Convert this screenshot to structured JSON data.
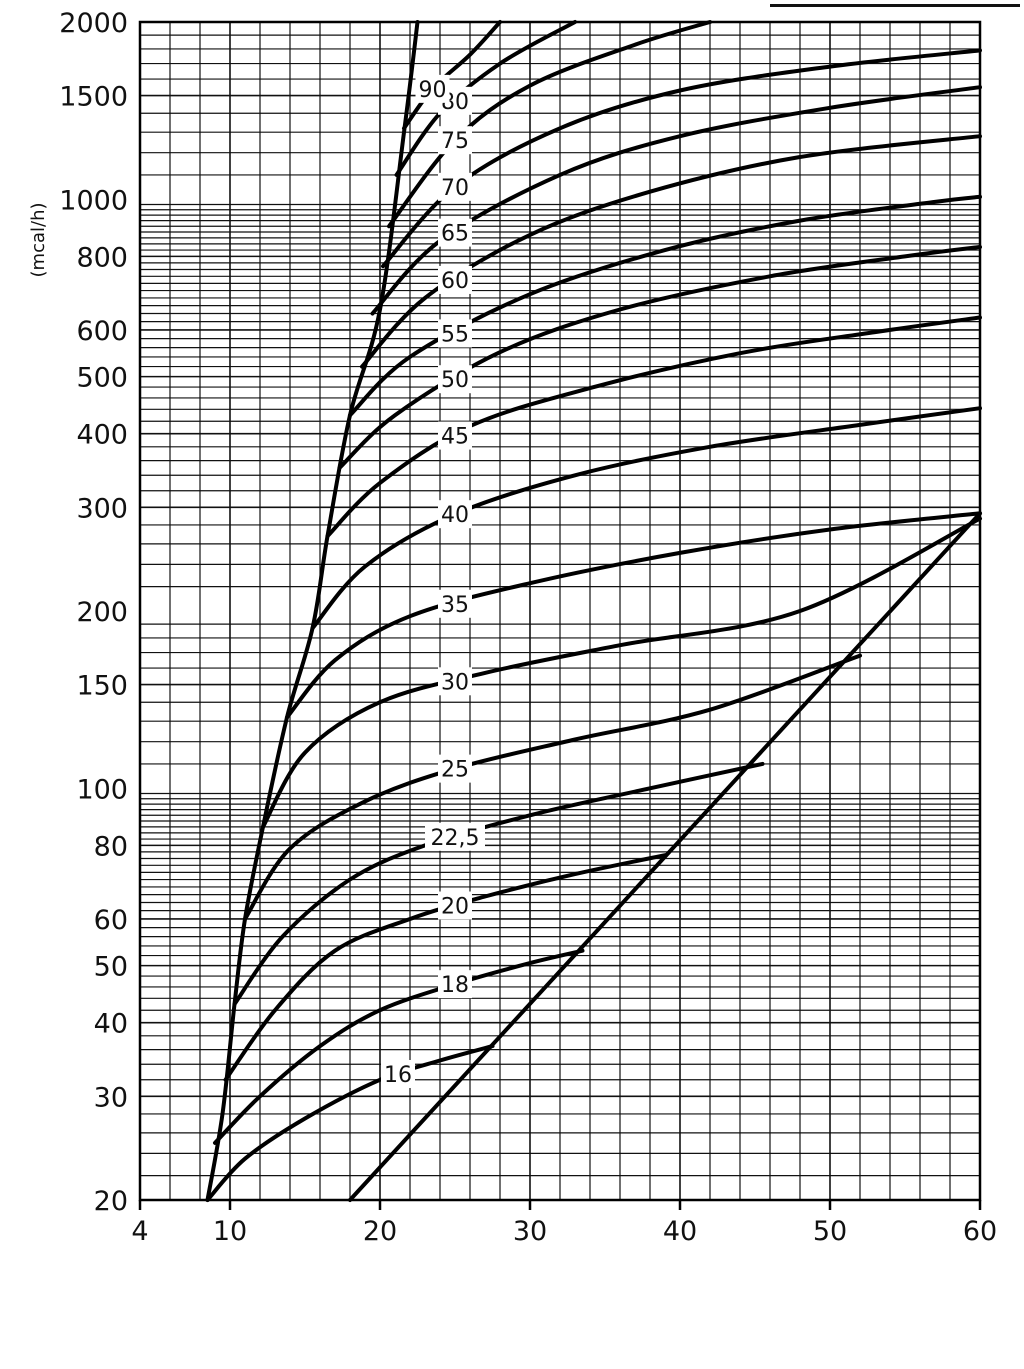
{
  "chart_data": {
    "type": "line",
    "ylabel": "(mcal/h)",
    "xlabel": "",
    "yscale": "log",
    "xlim": [
      4,
      60
    ],
    "ylim": [
      20,
      2000
    ],
    "grid": true,
    "x_ticks": [
      "4",
      "10",
      "20",
      "30",
      "40",
      "50",
      "60"
    ],
    "x_tick_values": [
      4,
      10,
      20,
      30,
      40,
      50,
      60
    ],
    "y_ticks": [
      "20",
      "30",
      "40",
      "50",
      "60",
      "80",
      "100",
      "150",
      "200",
      "300",
      "400",
      "500",
      "600",
      "800",
      "1000",
      "1500",
      "2000"
    ],
    "y_tick_values": [
      20,
      30,
      40,
      50,
      60,
      80,
      100,
      150,
      200,
      300,
      400,
      500,
      600,
      800,
      1000,
      1500,
      2000
    ],
    "series": [
      {
        "name": "16",
        "points": [
          [
            8.5,
            20
          ],
          [
            11,
            23.5
          ],
          [
            15,
            27.5
          ],
          [
            20,
            32
          ],
          [
            24,
            34.5
          ],
          [
            27.5,
            36.5
          ]
        ],
        "label_x": 21.2
      },
      {
        "name": "18",
        "points": [
          [
            9,
            25
          ],
          [
            12,
            30
          ],
          [
            16,
            36.5
          ],
          [
            20,
            42
          ],
          [
            25,
            46.5
          ],
          [
            30,
            50.5
          ],
          [
            33.5,
            53
          ]
        ],
        "label_x": 25
      },
      {
        "name": "20",
        "points": [
          [
            9.7,
            32
          ],
          [
            13,
            42
          ],
          [
            17,
            53
          ],
          [
            22,
            60
          ],
          [
            27,
            65.5
          ],
          [
            33,
            71.5
          ],
          [
            39,
            77
          ]
        ],
        "label_x": 25
      },
      {
        "name": "22,5",
        "points": [
          [
            10.3,
            43
          ],
          [
            13.5,
            56
          ],
          [
            18,
            70
          ],
          [
            23,
            80
          ],
          [
            30,
            90
          ],
          [
            38,
            100
          ],
          [
            45.5,
            110
          ]
        ],
        "label_x": 25
      },
      {
        "name": "25",
        "points": [
          [
            11,
            60
          ],
          [
            14,
            79
          ],
          [
            19,
            95
          ],
          [
            25,
            108
          ],
          [
            33,
            121
          ],
          [
            42,
            136
          ],
          [
            52,
            168
          ]
        ],
        "label_x": 25
      },
      {
        "name": "30",
        "points": [
          [
            12.2,
            86
          ],
          [
            15,
            115
          ],
          [
            20,
            140
          ],
          [
            27,
            157
          ],
          [
            36,
            175
          ],
          [
            48,
            200
          ],
          [
            60,
            287
          ]
        ],
        "label_x": 25
      },
      {
        "name": "35",
        "points": [
          [
            13.8,
            132
          ],
          [
            17,
            165
          ],
          [
            22,
            196
          ],
          [
            30,
            223
          ],
          [
            40,
            251
          ],
          [
            50,
            275
          ],
          [
            60,
            293
          ]
        ],
        "label_x": 25
      },
      {
        "name": "40",
        "points": [
          [
            15.5,
            187
          ],
          [
            19,
            238
          ],
          [
            25,
            292
          ],
          [
            33,
            340
          ],
          [
            42,
            380
          ],
          [
            52,
            414
          ],
          [
            60,
            442
          ]
        ],
        "label_x": 25
      },
      {
        "name": "45",
        "points": [
          [
            16.5,
            268
          ],
          [
            20,
            330
          ],
          [
            26,
            412
          ],
          [
            34,
            478
          ],
          [
            44,
            548
          ],
          [
            53,
            595
          ],
          [
            60,
            630
          ]
        ],
        "label_x": 25
      },
      {
        "name": "50",
        "points": [
          [
            17.3,
            350
          ],
          [
            21,
            430
          ],
          [
            28,
            550
          ],
          [
            36,
            650
          ],
          [
            46,
            740
          ],
          [
            55,
            800
          ],
          [
            60,
            830
          ]
        ],
        "label_x": 25
      },
      {
        "name": "55",
        "points": [
          [
            18,
            430
          ],
          [
            22,
            540
          ],
          [
            30,
            690
          ],
          [
            39,
            820
          ],
          [
            48,
            920
          ],
          [
            57,
            990
          ],
          [
            60,
            1010
          ]
        ],
        "label_x": 25
      },
      {
        "name": "60",
        "points": [
          [
            18.8,
            520
          ],
          [
            23,
            680
          ],
          [
            30,
            870
          ],
          [
            38,
            1030
          ],
          [
            48,
            1180
          ],
          [
            60,
            1280
          ]
        ],
        "label_x": 25
      },
      {
        "name": "65",
        "points": [
          [
            19.5,
            640
          ],
          [
            24,
            850
          ],
          [
            32,
            1100
          ],
          [
            40,
            1280
          ],
          [
            50,
            1430
          ],
          [
            60,
            1550
          ]
        ],
        "label_x": 25
      },
      {
        "name": "70",
        "points": [
          [
            20.2,
            770
          ],
          [
            25,
            1050
          ],
          [
            32,
            1320
          ],
          [
            40,
            1530
          ],
          [
            50,
            1680
          ],
          [
            60,
            1790
          ]
        ],
        "label_x": 25
      },
      {
        "name": "75",
        "points": [
          [
            20.6,
            900
          ],
          [
            25,
            1260
          ],
          [
            30,
            1560
          ],
          [
            37,
            1830
          ],
          [
            42,
            2000
          ]
        ],
        "label_x": 25
      },
      {
        "name": "80",
        "points": [
          [
            21.1,
            1100
          ],
          [
            24,
            1400
          ],
          [
            28,
            1700
          ],
          [
            33,
            2000
          ]
        ],
        "label_x": 25
      },
      {
        "name": "90",
        "points": [
          [
            21.6,
            1320
          ],
          [
            23.5,
            1540
          ],
          [
            26,
            1760
          ],
          [
            28,
            2000
          ]
        ],
        "label_x": 23.5
      }
    ],
    "boundary_lines": [
      {
        "points": [
          [
            8.5,
            20
          ],
          [
            9.5,
            28
          ],
          [
            10.3,
            43
          ],
          [
            11,
            60
          ],
          [
            12.2,
            86
          ],
          [
            13.8,
            132
          ],
          [
            15.5,
            187
          ],
          [
            16.5,
            268
          ],
          [
            18,
            430
          ],
          [
            20,
            650
          ],
          [
            21.6,
            1300
          ],
          [
            22.5,
            2000
          ]
        ]
      },
      {
        "points": [
          [
            18,
            20
          ],
          [
            60,
            293
          ]
        ]
      }
    ]
  }
}
